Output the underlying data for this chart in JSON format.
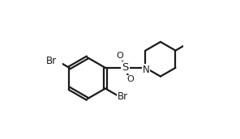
{
  "bg_color": "#ffffff",
  "line_color": "#1a1a1a",
  "line_width": 1.6,
  "font_size_br": 8.5,
  "font_size_s": 9.5,
  "font_size_n": 8.5,
  "font_size_o": 8.0,
  "xlim": [
    -0.5,
    3.0
  ],
  "ylim": [
    -1.6,
    1.5
  ],
  "figsize": [
    2.96,
    1.72
  ],
  "dpi": 100
}
